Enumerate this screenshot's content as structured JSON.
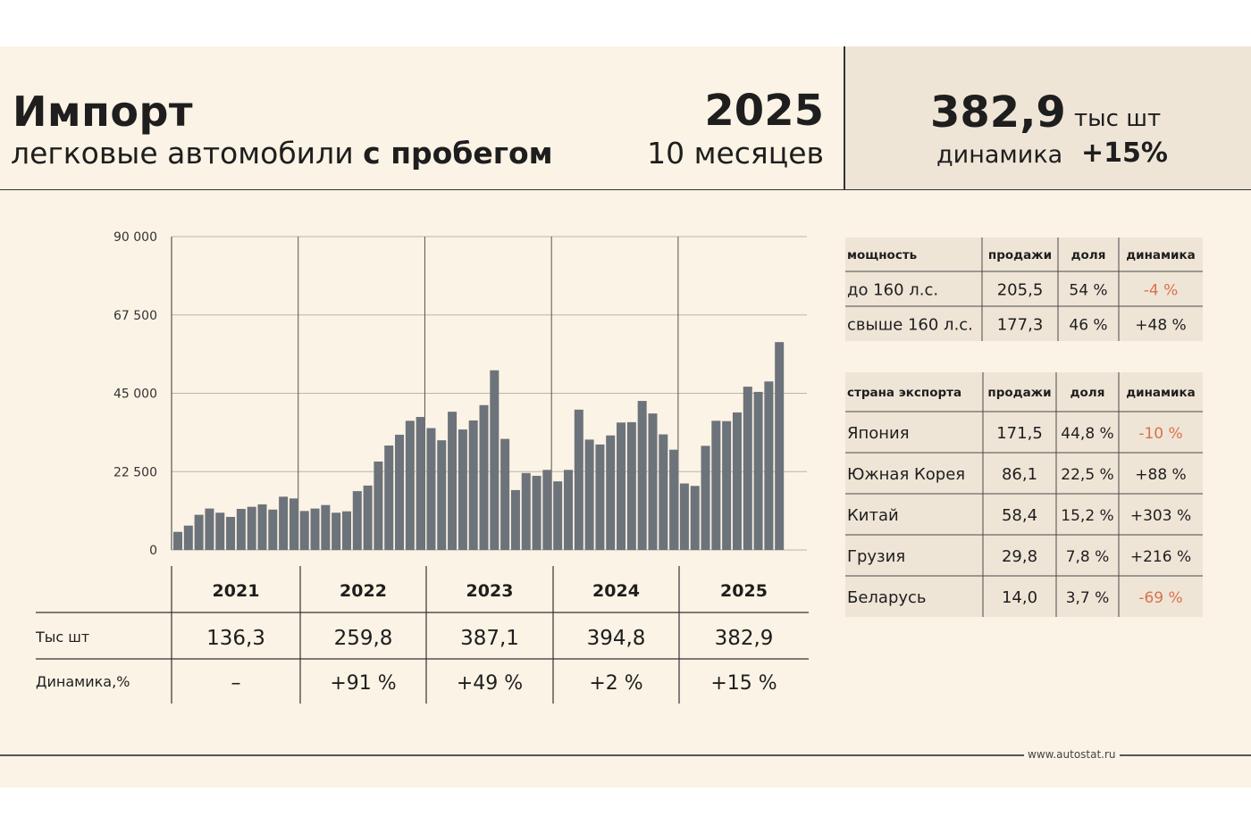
{
  "header": {
    "title": "Импорт",
    "subtitle_plain": "легковые автомобили ",
    "subtitle_bold": "с пробегом",
    "year": "2025",
    "period": "10 месяцев"
  },
  "kpi": {
    "value": "382,9",
    "unit": "тыс шт",
    "dynamics_label": "динамика",
    "dynamics_value": "+15%"
  },
  "colors": {
    "bar": "#6d737a",
    "negative": "#d9724a",
    "panel_bg": "#fbf3e5",
    "kpi_bg": "#efe5d7",
    "cell_bg": "#efe5d7"
  },
  "chart_data": {
    "type": "bar",
    "ylim": [
      0,
      90000
    ],
    "yticks": [
      "90 000",
      "67 500",
      "45 000",
      "22 500",
      "0"
    ],
    "ytick_values": [
      90000,
      67500,
      45000,
      22500,
      0
    ],
    "grid": true,
    "year_groups": [
      "2021",
      "2022",
      "2023",
      "2024",
      "2025"
    ],
    "values": [
      5200,
      7000,
      10100,
      11900,
      10700,
      9500,
      11800,
      12400,
      13100,
      11600,
      15300,
      14800,
      11200,
      11900,
      12900,
      10700,
      11100,
      16900,
      18500,
      25400,
      30000,
      33100,
      37100,
      38200,
      35000,
      31500,
      39700,
      34600,
      37200,
      41600,
      51600,
      31900,
      17200,
      22100,
      21300,
      23000,
      19700,
      23000,
      40300,
      31700,
      30300,
      32900,
      36600,
      36700,
      42800,
      39200,
      33200,
      28800,
      19100,
      18400,
      29900,
      37100,
      37000,
      39500,
      46900,
      45400,
      48400,
      59700
    ]
  },
  "summary_table": {
    "years": [
      "2021",
      "2022",
      "2023",
      "2024",
      "2025"
    ],
    "row1_label": "Тыс шт",
    "row1": [
      "136,3",
      "259,8",
      "387,1",
      "394,8",
      "382,9"
    ],
    "row2_label": "Динамика,%",
    "row2": [
      "–",
      "+91 %",
      "+49 %",
      "+2 %",
      "+15 %"
    ]
  },
  "power_table": {
    "headers": [
      "мощность",
      "продажи",
      "доля",
      "динамика"
    ],
    "rows": [
      {
        "name": "до 160 л.с.",
        "sales": "205,5",
        "share": "54 %",
        "dyn": "-4 %",
        "neg": true
      },
      {
        "name": "свыше 160 л.с.",
        "sales": "177,3",
        "share": "46 %",
        "dyn": "+48 %",
        "neg": false
      }
    ]
  },
  "country_table": {
    "headers": [
      "страна экспорта",
      "продажи",
      "доля",
      "динамика"
    ],
    "rows": [
      {
        "name": "Япония",
        "sales": "171,5",
        "share": "44,8 %",
        "dyn": "-10 %",
        "neg": true
      },
      {
        "name": "Южная Корея",
        "sales": "86,1",
        "share": "22,5 %",
        "dyn": "+88 %",
        "neg": false
      },
      {
        "name": "Китай",
        "sales": "58,4",
        "share": "15,2 %",
        "dyn": "+303 %",
        "neg": false
      },
      {
        "name": "Грузия",
        "sales": "29,8",
        "share": "7,8 %",
        "dyn": "+216 %",
        "neg": false
      },
      {
        "name": "Беларусь",
        "sales": "14,0",
        "share": "3,7 %",
        "dyn": "-69 %",
        "neg": true
      }
    ]
  },
  "footer": {
    "source": "www.autostat.ru"
  }
}
